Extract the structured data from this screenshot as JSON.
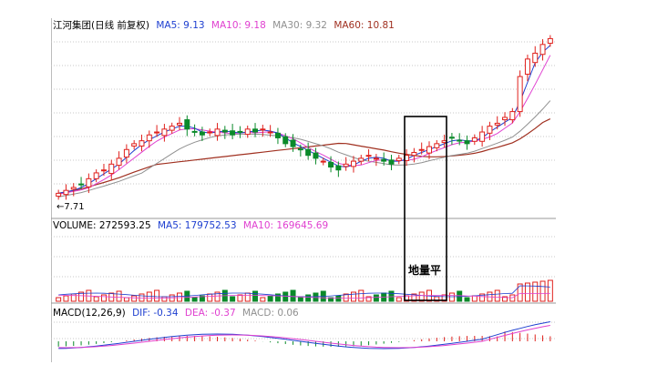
{
  "price_panel": {
    "title": "江河集团(日线 前复权)",
    "ma5": "MA5: 9.13",
    "ma10": "MA10: 9.18",
    "ma30": "MA30: 9.32",
    "ma60": "MA60: 10.81",
    "low_label": "←7.71",
    "colors": {
      "ma5": "#1e3fd0",
      "ma10": "#e040d0",
      "ma30": "#909090",
      "ma60": "#a03020",
      "up": "#e0201c",
      "down": "#0a8a2a"
    }
  },
  "volume_panel": {
    "volume": "VOLUME: 272593.25",
    "ma5": "MA5: 179752.53",
    "ma10": "MA10: 169645.69"
  },
  "macd_panel": {
    "label": "MACD(12,26,9)",
    "dif": "DIF: -0.34",
    "dea": "DEA: -0.37",
    "macd": "MACD: 0.06"
  },
  "annotation": {
    "text": "地量平"
  },
  "chart_data": {
    "type": "candlestick",
    "close_series_approx": [
      7.8,
      7.9,
      8.0,
      8.1,
      8.3,
      8.5,
      8.6,
      8.8,
      9.0,
      9.3,
      9.5,
      9.6,
      9.8,
      9.9,
      10.0,
      10.1,
      10.2,
      10.0,
      9.9,
      9.8,
      9.9,
      10.0,
      9.9,
      9.8,
      9.9,
      10.0,
      9.9,
      10.0,
      9.9,
      9.7,
      9.5,
      9.4,
      9.3,
      9.1,
      9.0,
      8.9,
      8.7,
      8.6,
      8.8,
      8.9,
      9.0,
      9.1,
      9.0,
      8.9,
      8.8,
      9.0,
      9.1,
      9.2,
      9.3,
      9.4,
      9.5,
      9.6,
      9.7,
      9.6,
      9.5,
      9.7,
      9.9,
      10.1,
      10.2,
      10.4,
      10.6,
      11.8,
      12.4,
      12.6,
      12.9,
      13.1
    ]
  }
}
